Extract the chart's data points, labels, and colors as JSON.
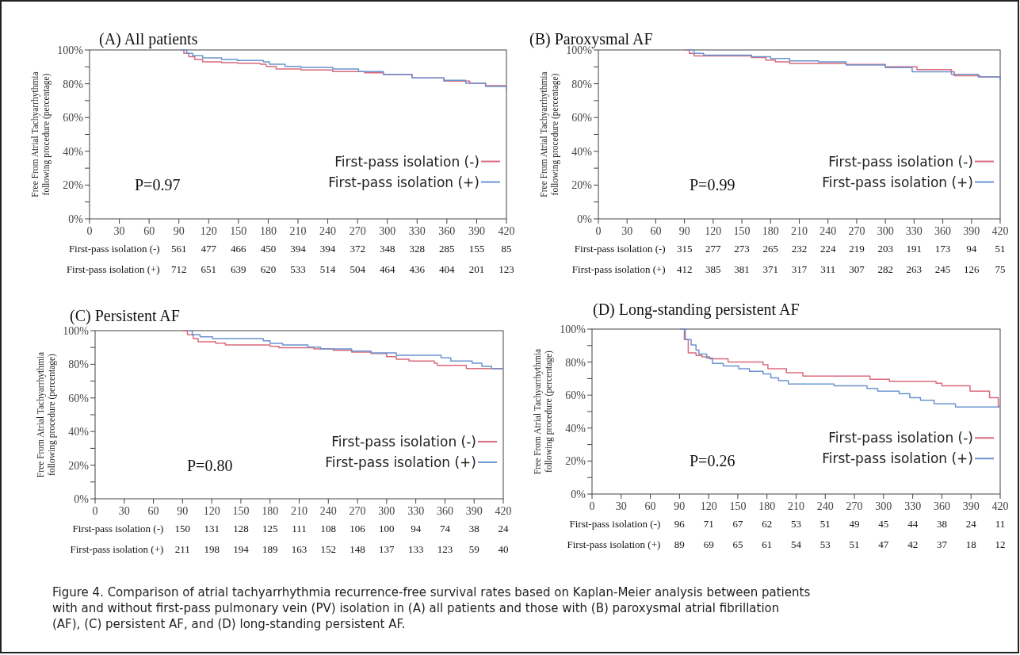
{
  "chart_data": [
    {
      "type": "step",
      "title": "(A) All patients",
      "ylabel": "Free From Atrial Tachyarrhythmia following procedure (percentage)",
      "xlim": [
        0,
        420
      ],
      "ylim": [
        0,
        100
      ],
      "xticks": [
        0,
        30,
        60,
        90,
        120,
        150,
        180,
        210,
        240,
        270,
        300,
        330,
        360,
        390,
        420
      ],
      "yticks": [
        {
          "value": 0,
          "label": "0%"
        },
        {
          "value": 10,
          "label": null
        },
        {
          "value": 20,
          "label": "20%"
        },
        {
          "value": 30,
          "label": null
        },
        {
          "value": 40,
          "label": "40%"
        },
        {
          "value": 50,
          "label": null
        },
        {
          "value": 60,
          "label": "60%"
        },
        {
          "value": 70,
          "label": null
        },
        {
          "value": 80,
          "label": "80%"
        },
        {
          "value": 90,
          "label": null
        },
        {
          "value": 100,
          "label": "100%"
        }
      ],
      "legend": "right",
      "series": [
        {
          "name": "First-pass isolation (-)",
          "color": "#d9697c",
          "x": [
            92,
            95,
            100,
            106,
            114,
            133,
            149,
            172,
            178,
            188,
            213,
            245,
            277,
            296,
            325,
            357,
            383,
            399,
            420
          ],
          "values": [
            100,
            98,
            96,
            94.4,
            93,
            92.5,
            92.1,
            91.5,
            90.2,
            88.7,
            88.2,
            87.2,
            86.5,
            85.5,
            83.5,
            81.6,
            80.3,
            78.9,
            76.5
          ]
        },
        {
          "name": "First-pass isolation (+)",
          "color": "#6b94cf",
          "x": [
            92,
            98,
            104,
            114,
            133,
            149,
            175,
            181,
            197,
            213,
            245,
            271,
            296,
            325,
            357,
            379,
            399,
            420
          ],
          "values": [
            100,
            98,
            96.6,
            95.3,
            94.4,
            93.8,
            92.9,
            91.5,
            90.2,
            89.7,
            88.7,
            87.2,
            85.5,
            83.5,
            82.1,
            80.3,
            78.4,
            76.5
          ]
        }
      ],
      "annotations": [
        "P=0.97",
        "First-pass isolation (-)",
        "561",
        "477",
        "466",
        "450",
        "394",
        "394",
        "372",
        "348",
        "328",
        "285",
        "155",
        "85",
        "First-pass isolation (+)",
        "712",
        "651",
        "639",
        "620",
        "533",
        "514",
        "504",
        "464",
        "436",
        "404",
        "201",
        "123"
      ]
    },
    {
      "type": "step",
      "title": "(B) Paroxysmal AF",
      "ylabel": "Free From Atrial Tachyarrhythmia following procedure (percentage)",
      "xlim": [
        0,
        420
      ],
      "ylim": [
        0,
        100
      ],
      "xticks": [
        0,
        30,
        60,
        90,
        120,
        150,
        180,
        210,
        240,
        270,
        300,
        330,
        360,
        390,
        420
      ],
      "yticks": [
        {
          "value": 0,
          "label": "0%"
        },
        {
          "value": 10,
          "label": null
        },
        {
          "value": 20,
          "label": "20%"
        },
        {
          "value": 30,
          "label": null
        },
        {
          "value": 40,
          "label": "40%"
        },
        {
          "value": 50,
          "label": null
        },
        {
          "value": 60,
          "label": "60%"
        },
        {
          "value": 70,
          "label": null
        },
        {
          "value": 80,
          "label": "80%"
        },
        {
          "value": 90,
          "label": null
        },
        {
          "value": 100,
          "label": "100%"
        }
      ],
      "legend": "right",
      "series": [
        {
          "name": "First-pass isolation (-)",
          "color": "#d9697c",
          "x": [
            90,
            95,
            100,
            160,
            175,
            185,
            200,
            259,
            300,
            333,
            369,
            372,
            399,
            420
          ],
          "values": [
            100,
            98,
            96.5,
            95.5,
            94,
            93,
            92,
            91.4,
            90,
            88.4,
            87.1,
            84.8,
            84,
            83.2
          ]
        },
        {
          "name": "First-pass isolation (+)",
          "color": "#6b94cf",
          "x": [
            92,
            100,
            110,
            160,
            180,
            200,
            230,
            259,
            300,
            328,
            369,
            397,
            420
          ],
          "values": [
            100,
            98,
            97,
            96,
            95,
            93.5,
            93,
            91.1,
            89.5,
            87.1,
            85.6,
            84,
            81.7
          ]
        }
      ],
      "annotations": [
        "P=0.99",
        "First-pass isolation (-)",
        "315",
        "277",
        "273",
        "265",
        "232",
        "224",
        "219",
        "203",
        "191",
        "173",
        "94",
        "51",
        "First-pass isolation (+)",
        "412",
        "385",
        "381",
        "371",
        "317",
        "311",
        "307",
        "282",
        "263",
        "245",
        "126",
        "75"
      ]
    },
    {
      "type": "step",
      "title": "(C) Persistent AF",
      "ylabel": "Free From Atrial Tachyarrhythmia following procedure (percentage)",
      "xlim": [
        0,
        420
      ],
      "ylim": [
        0,
        100
      ],
      "xticks": [
        0,
        30,
        60,
        90,
        120,
        150,
        180,
        210,
        240,
        270,
        300,
        330,
        360,
        390,
        420
      ],
      "yticks": [
        {
          "value": 0,
          "label": "0%"
        },
        {
          "value": 10,
          "label": null
        },
        {
          "value": 20,
          "label": "20%"
        },
        {
          "value": 30,
          "label": null
        },
        {
          "value": 40,
          "label": "40%"
        },
        {
          "value": 50,
          "label": null
        },
        {
          "value": 60,
          "label": "60%"
        },
        {
          "value": 70,
          "label": null
        },
        {
          "value": 80,
          "label": "80%"
        },
        {
          "value": 90,
          "label": null
        },
        {
          "value": 100,
          "label": "100%"
        }
      ],
      "legend": "right",
      "series": [
        {
          "name": "First-pass isolation (-)",
          "color": "#d9697c",
          "x": [
            90,
            95,
            101,
            106,
            124,
            134,
            180,
            189,
            225,
            245,
            264,
            284,
            300,
            310,
            323,
            349,
            352,
            382,
            420
          ],
          "values": [
            100,
            97.7,
            95.3,
            93.4,
            92.6,
            91.5,
            90.7,
            89.8,
            89.2,
            88.3,
            87.3,
            86.4,
            84.5,
            83,
            82,
            80.7,
            79.4,
            77.5,
            77.5
          ]
        },
        {
          "name": "First-pass isolation (+)",
          "color": "#6b94cf",
          "x": [
            96,
            100,
            108,
            121,
            173,
            180,
            193,
            219,
            232,
            264,
            284,
            310,
            356,
            366,
            388,
            398,
            408,
            420
          ],
          "values": [
            100,
            97.7,
            96.4,
            95.3,
            94,
            92.4,
            91.5,
            90.2,
            89.2,
            87.9,
            86.8,
            85.4,
            83.9,
            82,
            80.7,
            78.8,
            77.3,
            77.3
          ]
        }
      ],
      "annotations": [
        "P=0.80",
        "First-pass isolation (-)",
        "150",
        "131",
        "128",
        "125",
        "111",
        "108",
        "106",
        "100",
        "94",
        "74",
        "38",
        "24",
        "First-pass isolation (+)",
        "211",
        "198",
        "194",
        "189",
        "163",
        "152",
        "148",
        "137",
        "133",
        "123",
        "59",
        "40"
      ]
    },
    {
      "type": "step",
      "title": "(D) Long-standing persistent AF",
      "ylabel": "Free From Atrial Tachyarrhythmia following procedure (percentage)",
      "xlim": [
        0,
        420
      ],
      "ylim": [
        0,
        100
      ],
      "xticks": [
        0,
        30,
        60,
        90,
        120,
        150,
        180,
        210,
        240,
        270,
        300,
        330,
        360,
        390,
        420
      ],
      "yticks": [
        {
          "value": 0,
          "label": "0%"
        },
        {
          "value": 10,
          "label": null
        },
        {
          "value": 20,
          "label": "20%"
        },
        {
          "value": 30,
          "label": null
        },
        {
          "value": 40,
          "label": "40%"
        },
        {
          "value": 50,
          "label": null
        },
        {
          "value": 60,
          "label": "60%"
        },
        {
          "value": 70,
          "label": null
        },
        {
          "value": 80,
          "label": "80%"
        },
        {
          "value": 90,
          "label": null
        },
        {
          "value": 100,
          "label": "100%"
        }
      ],
      "legend": "right",
      "series": [
        {
          "name": "First-pass isolation (-)",
          "color": "#d9697c",
          "x": [
            91,
            95,
            99,
            107,
            113,
            121,
            140,
            176,
            181,
            200,
            217,
            286,
            306,
            354,
            360,
            389,
            409,
            418,
            420
          ],
          "values": [
            100,
            93.6,
            85.6,
            84,
            83.2,
            82,
            80,
            78.4,
            76,
            73.6,
            71.5,
            69.6,
            68.3,
            67.2,
            65.6,
            62.4,
            58.4,
            53.3,
            53.3
          ]
        },
        {
          "name": "First-pass isolation (+)",
          "color": "#6b94cf",
          "x": [
            91,
            96,
            102,
            107,
            110,
            118,
            124,
            135,
            151,
            162,
            176,
            184,
            192,
            202,
            249,
            283,
            294,
            316,
            327,
            338,
            352,
            374,
            420
          ],
          "values": [
            100,
            93.6,
            90.4,
            87.2,
            84.8,
            82.4,
            79.2,
            77.6,
            76,
            74.4,
            72.8,
            70.4,
            68.8,
            66.7,
            65.6,
            64,
            62.4,
            60.8,
            58.4,
            56.8,
            54.7,
            52.8,
            52.8
          ]
        }
      ],
      "annotations": [
        "P=0.26",
        "First-pass isolation (-)",
        "96",
        "71",
        "67",
        "62",
        "53",
        "51",
        "49",
        "45",
        "44",
        "38",
        "24",
        "11",
        "First-pass isolation (+)",
        "89",
        "69",
        "65",
        "61",
        "54",
        "53",
        "51",
        "47",
        "42",
        "37",
        "18",
        "12"
      ]
    },
    {
      "type": "other",
      "annotations": [
        "Figure 4.    Comparison of atrial tachyarrhythmia recurrence-free survival rates based on Kaplan-Meier analysis between patients with and without first-pass pulmonary vein (PV) isolation in (A) all patients and those with (B) paroxysmal atrial fibrillation (AF), (C) persistent AF, and (D) long-standing persistent AF."
      ]
    }
  ]
}
